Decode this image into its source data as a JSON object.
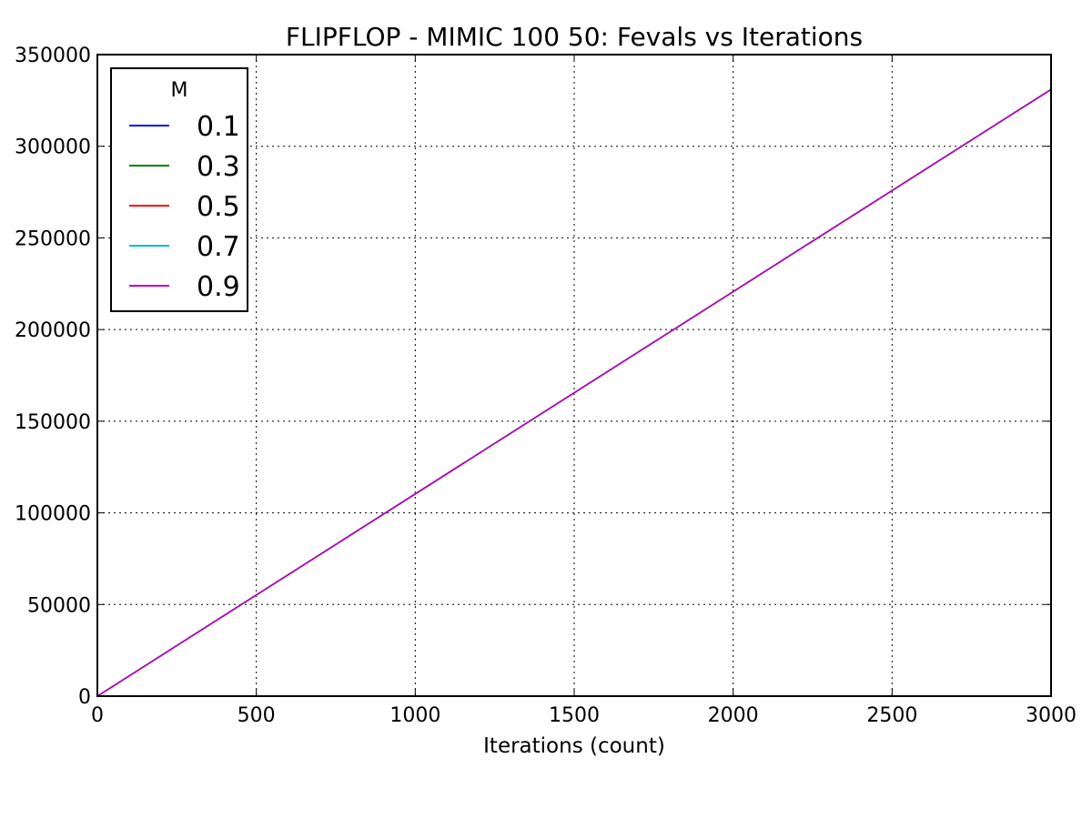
{
  "chart_data": {
    "type": "line",
    "title": "FLIPFLOP - MIMIC 100 50: Fevals vs Iterations",
    "xlabel": "Iterations (count)",
    "ylabel": "",
    "xlim": [
      0,
      3000
    ],
    "ylim": [
      0,
      350000
    ],
    "x_ticks": [
      0,
      500,
      1000,
      1500,
      2000,
      2500,
      3000
    ],
    "y_ticks": [
      0,
      50000,
      100000,
      150000,
      200000,
      250000,
      300000,
      350000
    ],
    "grid": true,
    "legend": {
      "title": "M",
      "placement": "top-left"
    },
    "x": [
      0,
      3000
    ],
    "series": [
      {
        "name": "0.1",
        "color": "#0000ff",
        "values": [
          0,
          331000
        ]
      },
      {
        "name": "0.3",
        "color": "#008000",
        "values": [
          0,
          331000
        ]
      },
      {
        "name": "0.5",
        "color": "#ff0000",
        "values": [
          0,
          331000
        ]
      },
      {
        "name": "0.7",
        "color": "#00bfbf",
        "values": [
          0,
          331000
        ]
      },
      {
        "name": "0.9",
        "color": "#bf00bf",
        "values": [
          0,
          331000
        ]
      }
    ]
  }
}
